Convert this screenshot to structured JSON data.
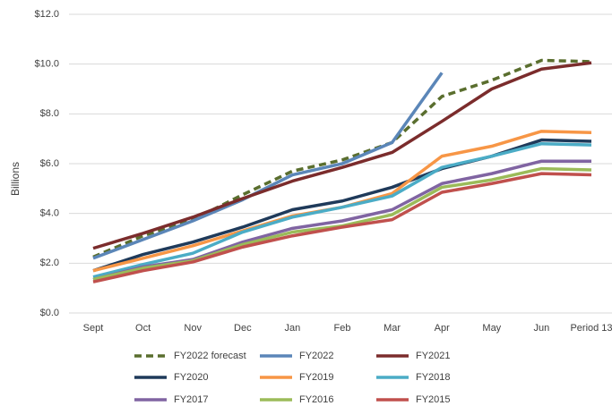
{
  "chart_data": {
    "type": "line",
    "y_label": "Billions",
    "categories": [
      "Sept",
      "Oct",
      "Nov",
      "Dec",
      "Jan",
      "Feb",
      "Mar",
      "Apr",
      "May",
      "Jun",
      "Period 13"
    ],
    "ylim": [
      0,
      12
    ],
    "yticks": [
      {
        "value": 0,
        "label": "$0.0"
      },
      {
        "value": 2,
        "label": "$2.0"
      },
      {
        "value": 4,
        "label": "$4.0"
      },
      {
        "value": 6,
        "label": "$6.0"
      },
      {
        "value": 8,
        "label": "$8.0"
      },
      {
        "value": 10,
        "label": "$10.0"
      },
      {
        "value": 12,
        "label": "$12.0"
      }
    ],
    "grid": true,
    "series": [
      {
        "name": "FY2022 forecast",
        "color": "#5a6e2e",
        "style": "dashed",
        "values": [
          2.25,
          3.1,
          3.75,
          4.75,
          5.7,
          6.15,
          6.85,
          8.7,
          9.35,
          10.15,
          10.1
        ]
      },
      {
        "name": "FY2022",
        "color": "#5b86b8",
        "values": [
          2.2,
          2.95,
          3.7,
          4.55,
          5.55,
          6.0,
          6.85,
          9.65,
          null,
          null,
          null
        ]
      },
      {
        "name": "FY2021",
        "color": "#7b2c2c",
        "values": [
          2.6,
          3.2,
          3.85,
          4.6,
          5.3,
          5.85,
          6.45,
          7.7,
          9.0,
          9.8,
          10.05
        ]
      },
      {
        "name": "FY2020",
        "color": "#1f3a5a",
        "values": [
          1.7,
          2.35,
          2.85,
          3.45,
          4.15,
          4.5,
          5.05,
          5.8,
          6.3,
          6.95,
          6.9
        ]
      },
      {
        "name": "FY2019",
        "color": "#f79646",
        "values": [
          1.7,
          2.2,
          2.7,
          3.3,
          3.9,
          4.25,
          4.8,
          6.3,
          6.7,
          7.3,
          7.25
        ]
      },
      {
        "name": "FY2018",
        "color": "#4bacc6",
        "values": [
          1.45,
          1.95,
          2.4,
          3.25,
          3.85,
          4.25,
          4.7,
          5.85,
          6.3,
          6.8,
          6.75
        ]
      },
      {
        "name": "FY2017",
        "color": "#8064a2",
        "values": [
          1.35,
          1.85,
          2.15,
          2.85,
          3.4,
          3.7,
          4.15,
          5.2,
          5.6,
          6.1,
          6.1
        ]
      },
      {
        "name": "FY2016",
        "color": "#9bbb59",
        "values": [
          1.35,
          1.8,
          2.1,
          2.75,
          3.25,
          3.5,
          3.95,
          5.05,
          5.35,
          5.8,
          5.75
        ]
      },
      {
        "name": "FY2015",
        "color": "#c0504d",
        "values": [
          1.25,
          1.7,
          2.05,
          2.65,
          3.1,
          3.45,
          3.75,
          4.85,
          5.2,
          5.6,
          5.55
        ]
      }
    ]
  }
}
